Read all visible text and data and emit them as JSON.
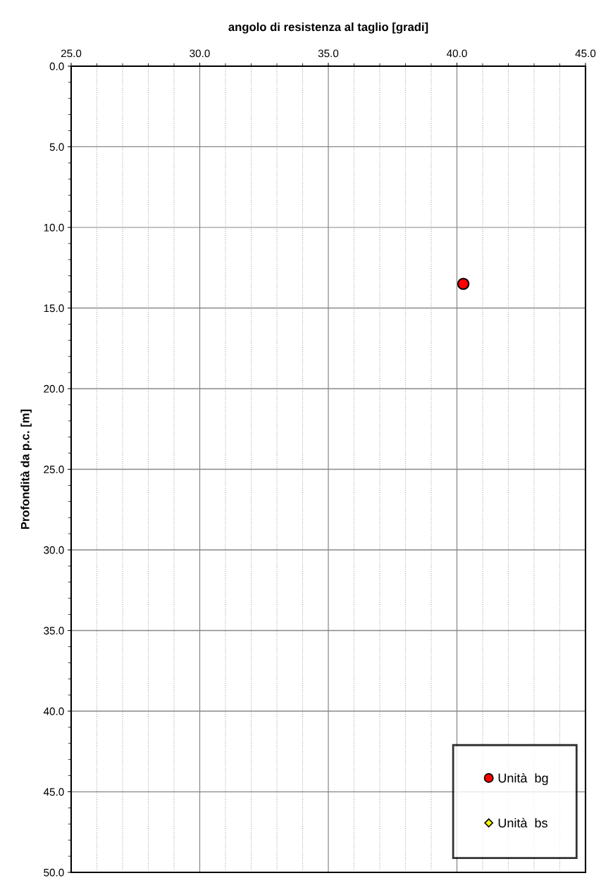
{
  "chart_data": {
    "type": "scatter",
    "title": "angolo di resistenza al taglio [gradi]",
    "ylabel": "Profondità da p.c. [m]",
    "xlim": [
      25,
      45
    ],
    "xticks": [
      {
        "value": 25,
        "label": "25.0"
      },
      {
        "value": 30,
        "label": "30.0"
      },
      {
        "value": 35,
        "label": "35.0"
      },
      {
        "value": 40,
        "label": "40.0"
      },
      {
        "value": 45,
        "label": "45.0"
      }
    ],
    "ylim": [
      50,
      0
    ],
    "yticks": [
      {
        "value": 0,
        "label": "0.0"
      },
      {
        "value": 5,
        "label": "5.0"
      },
      {
        "value": 10,
        "label": "10.0"
      },
      {
        "value": 15,
        "label": "15.0"
      },
      {
        "value": 20,
        "label": "20.0"
      },
      {
        "value": 25,
        "label": "25.0"
      },
      {
        "value": 30,
        "label": "30.0"
      },
      {
        "value": 35,
        "label": "35.0"
      },
      {
        "value": 40,
        "label": "40.0"
      },
      {
        "value": 45,
        "label": "45.0"
      },
      {
        "value": 50,
        "label": "50.0"
      }
    ],
    "grid": true,
    "legend": "bottom right",
    "series": [
      {
        "name": "Unità  bg",
        "color": "#ff0000",
        "marker": "circle",
        "x": [
          40.25
        ],
        "values": [
          13.5
        ]
      },
      {
        "name": "Unità  bs",
        "color": "#ffff00",
        "marker": "diamond"
      }
    ]
  }
}
